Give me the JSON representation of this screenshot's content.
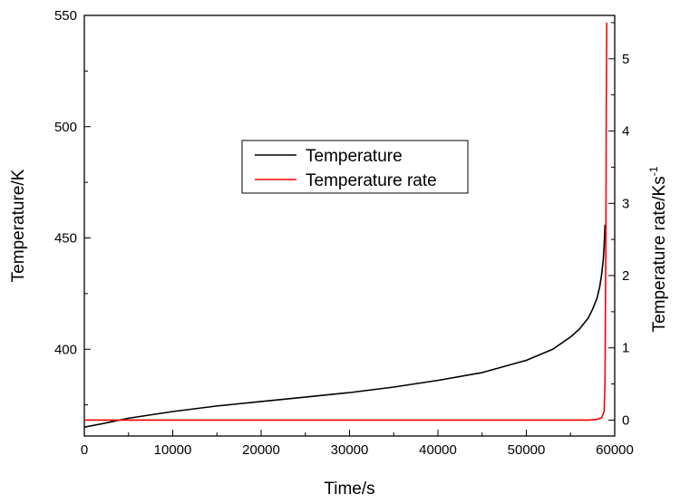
{
  "chart_data": {
    "type": "line",
    "title": "",
    "xlabel": "Time/s",
    "ylabel_left": "Temperature/K",
    "ylabel_right_base": "Temperature rate/Ks",
    "ylabel_right_sup": "-1",
    "xlim": [
      0,
      60000
    ],
    "ylim_left": [
      361,
      550
    ],
    "ylim_right": [
      -0.22,
      5.6
    ],
    "x_ticks": [
      0,
      10000,
      20000,
      30000,
      40000,
      50000,
      60000
    ],
    "x_tick_labels": [
      "0",
      "10000",
      "20000",
      "30000",
      "40000",
      "50000",
      "60000"
    ],
    "y_left_ticks": [
      400,
      450,
      500,
      550
    ],
    "y_left_tick_labels": [
      "400",
      "450",
      "500",
      "550"
    ],
    "y_right_ticks": [
      0,
      1,
      2,
      3,
      4,
      5
    ],
    "y_right_tick_labels": [
      "0",
      "1",
      "2",
      "3",
      "4",
      "5"
    ],
    "grid": false,
    "legend_position": "center-left",
    "series": [
      {
        "name": "Temperature",
        "axis": "left",
        "color": "#000000",
        "x": [
          0,
          2000,
          5000,
          10000,
          15000,
          20000,
          25000,
          30000,
          35000,
          40000,
          45000,
          50000,
          53000,
          55000,
          56000,
          57000,
          57500,
          58000,
          58300,
          58500,
          58700,
          58800,
          58900
        ],
        "y": [
          365,
          366.5,
          369,
          372,
          374.5,
          376.5,
          378.5,
          380.5,
          383,
          386,
          389.5,
          395,
          400,
          405.5,
          409,
          414,
          418,
          423,
          428,
          433,
          440,
          446,
          456
        ]
      },
      {
        "name": "Temperature rate",
        "axis": "right",
        "color": "#ff0000",
        "x": [
          0,
          10000,
          20000,
          30000,
          40000,
          50000,
          55000,
          57000,
          58000,
          58500,
          58800,
          58900,
          59000,
          59050,
          59100
        ],
        "y": [
          0,
          0,
          0,
          0,
          0,
          0,
          0,
          0,
          0.01,
          0.03,
          0.12,
          0.5,
          2.5,
          4.5,
          5.5
        ]
      }
    ]
  }
}
